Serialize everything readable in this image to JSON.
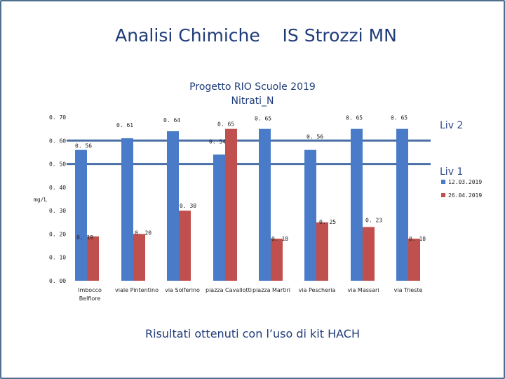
{
  "slide": {
    "title": "Analisi Chimiche    IS Strozzi MN",
    "subtitle": "Risultati ottenuti con l’uso di kit HACH"
  },
  "colors": {
    "series1": "#4a7bc8",
    "series2": "#c0504d",
    "level_line": "#4a6fa5",
    "frame": "#4f6f8f"
  },
  "chart_data": {
    "type": "bar",
    "title_line1": "Progetto RIO Scuole 2019",
    "title_line2": "Nitrati_N",
    "ylabel": "mg/L",
    "ylim": [
      0.0,
      0.7
    ],
    "yticks": [
      0.0,
      0.1,
      0.2,
      0.3,
      0.4,
      0.5,
      0.6,
      0.7
    ],
    "ytick_labels": [
      "0. 00",
      "0. 10",
      "0. 20",
      "0. 30",
      "0. 40",
      "0. 50",
      "0. 60",
      "0. 70"
    ],
    "categories": [
      "Imbocco Belfiore",
      "viale Pintentino",
      "via Solferino",
      "piazza Cavallotti",
      "piazza Martiri",
      "via Pescheria",
      "via Massari",
      "via Trieste"
    ],
    "series": [
      {
        "name": "12.03.2019",
        "values": [
          0.56,
          0.61,
          0.64,
          0.54,
          0.65,
          0.56,
          0.65,
          0.65
        ],
        "labels": [
          "0. 56",
          "0. 61",
          "0. 64",
          "0. 54",
          "0. 65",
          "0. 56",
          "0. 65",
          "0. 65"
        ]
      },
      {
        "name": "26.04.2019",
        "values": [
          0.19,
          0.2,
          0.3,
          0.65,
          0.18,
          0.25,
          0.23,
          0.18
        ],
        "labels": [
          "0. 19",
          "0. 20",
          "0. 30",
          "0. 65",
          "0. 18",
          "0. 25",
          "0. 23",
          "0. 18"
        ]
      }
    ],
    "levels": [
      {
        "name": "Liv  2",
        "value": 0.6
      },
      {
        "name": "Liv  1",
        "value": 0.5
      }
    ],
    "legend_position": "right",
    "grid": false
  }
}
